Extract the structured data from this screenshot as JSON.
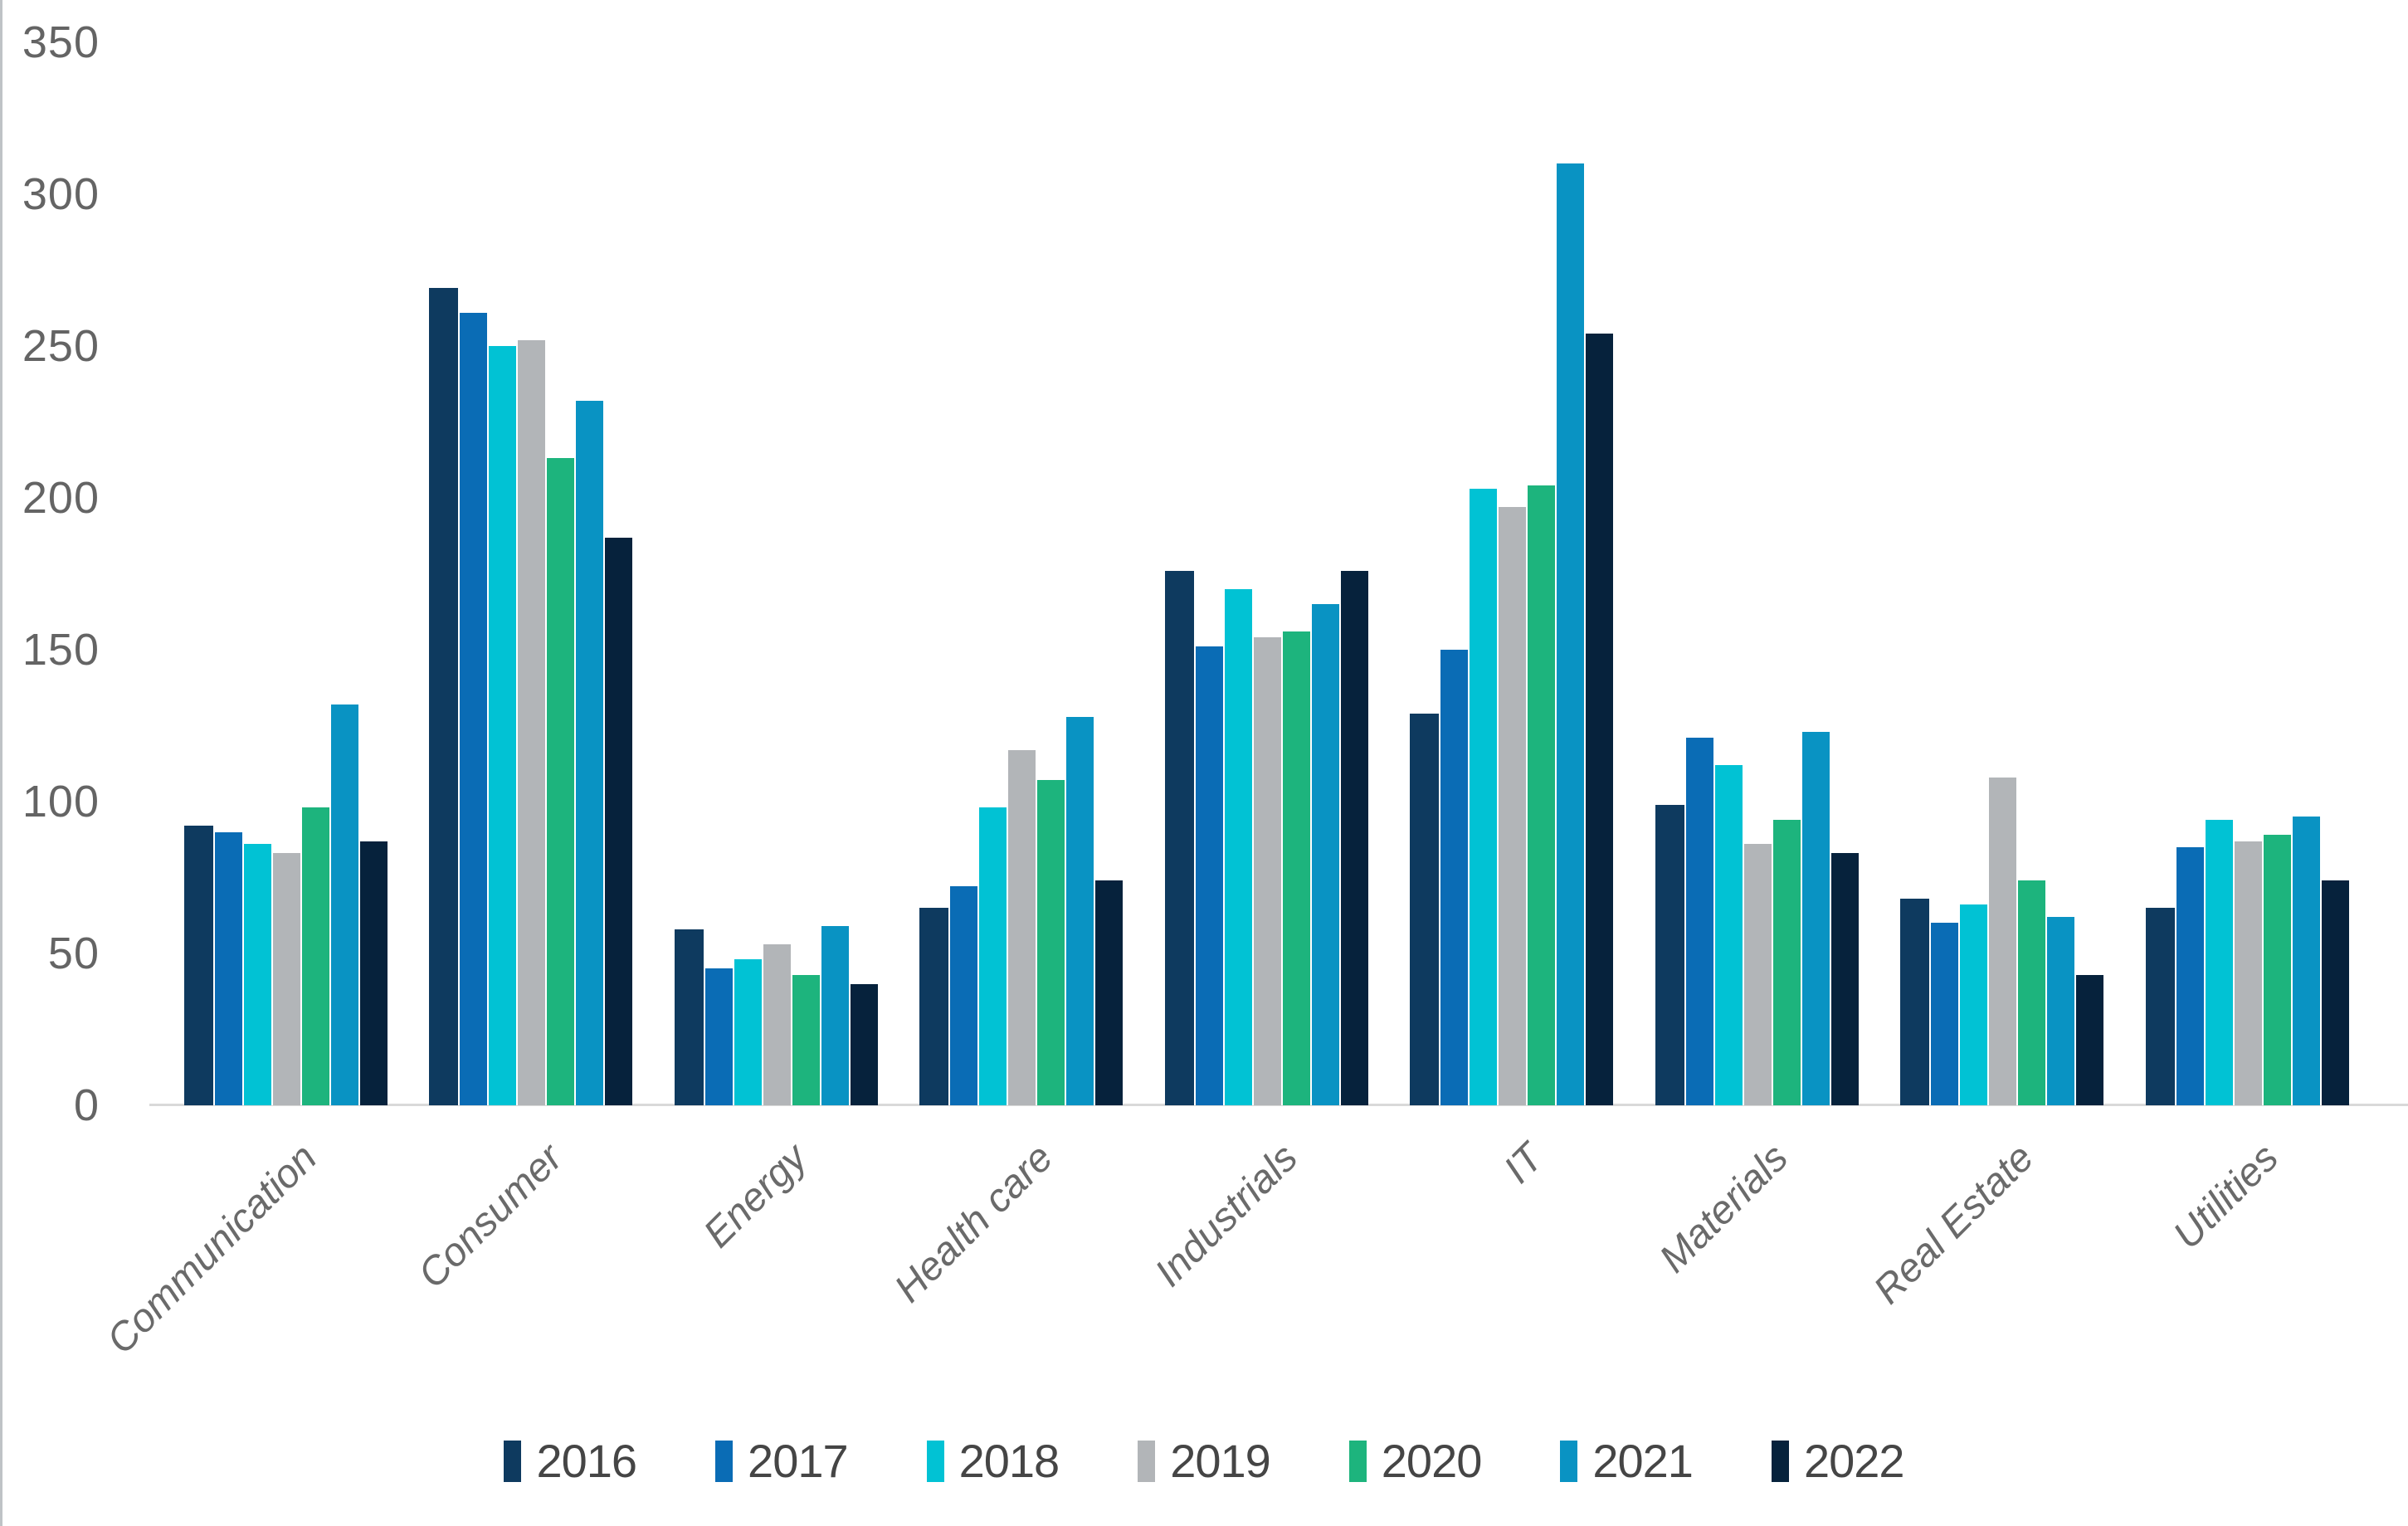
{
  "chart_data": {
    "type": "bar",
    "title": "",
    "xlabel": "",
    "ylabel": "",
    "categories": [
      "Communication",
      "Consumer",
      "Energy",
      "Health care",
      "Industrials",
      "IT",
      "Materials",
      "Real Estate",
      "Utilities"
    ],
    "series": [
      {
        "name": "2016",
        "color": "#0e3a5f",
        "values": [
          92,
          269,
          58,
          65,
          176,
          129,
          99,
          68,
          65
        ]
      },
      {
        "name": "2017",
        "color": "#0a6cb5",
        "values": [
          90,
          261,
          45,
          72,
          151,
          150,
          121,
          60,
          85
        ]
      },
      {
        "name": "2018",
        "color": "#01c2d4",
        "values": [
          86,
          250,
          48,
          98,
          170,
          203,
          112,
          66,
          94
        ]
      },
      {
        "name": "2019",
        "color": "#b2b5b8",
        "values": [
          83,
          252,
          53,
          117,
          154,
          197,
          86,
          108,
          87
        ]
      },
      {
        "name": "2020",
        "color": "#1db47d",
        "values": [
          98,
          213,
          43,
          107,
          156,
          204,
          94,
          74,
          89
        ]
      },
      {
        "name": "2021",
        "color": "#0993c3",
        "values": [
          132,
          232,
          59,
          128,
          165,
          310,
          123,
          62,
          95
        ]
      },
      {
        "name": "2022",
        "color": "#06223c",
        "values": [
          87,
          187,
          40,
          74,
          176,
          254,
          83,
          43,
          74
        ]
      }
    ],
    "ylim": [
      0,
      350
    ],
    "ytick_step": 50,
    "yticks": [
      0,
      50,
      100,
      150,
      200,
      250,
      300,
      350
    ],
    "grid": "off",
    "legend_position": "bottom",
    "legend_marker": "vertical-bar",
    "axis_line_color": "#d9d9d9",
    "tick_label_color": "#646464",
    "category_label_color": "#6a6a6a",
    "category_label_style": "italic rotated 45deg"
  }
}
